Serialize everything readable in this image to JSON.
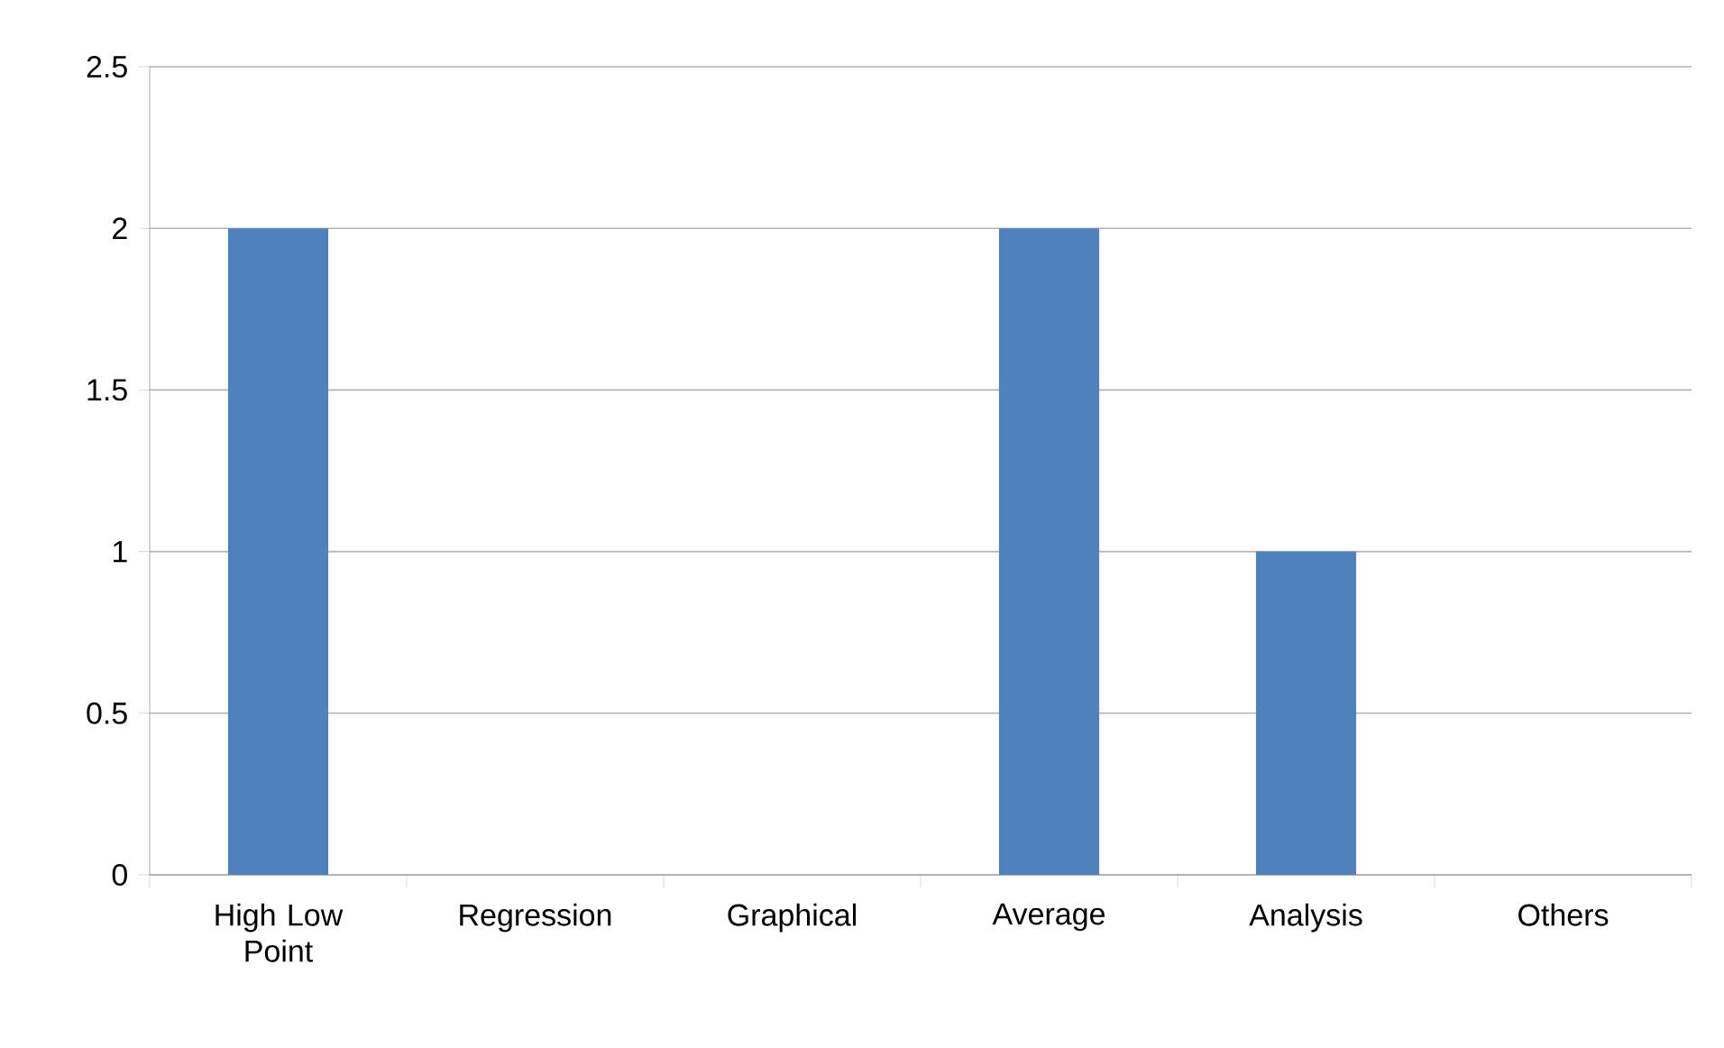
{
  "chart_data": {
    "type": "bar",
    "categories": [
      "High Low Point",
      "Regression",
      "Graphical",
      "Average",
      "Analysis",
      "Others"
    ],
    "values": [
      2,
      0,
      0,
      2,
      1,
      0
    ],
    "color": "#4f81bd",
    "ylim": [
      0,
      2.5
    ],
    "yticks": [
      0,
      0.5,
      1,
      1.5,
      2,
      2.5
    ],
    "grid": "y"
  }
}
